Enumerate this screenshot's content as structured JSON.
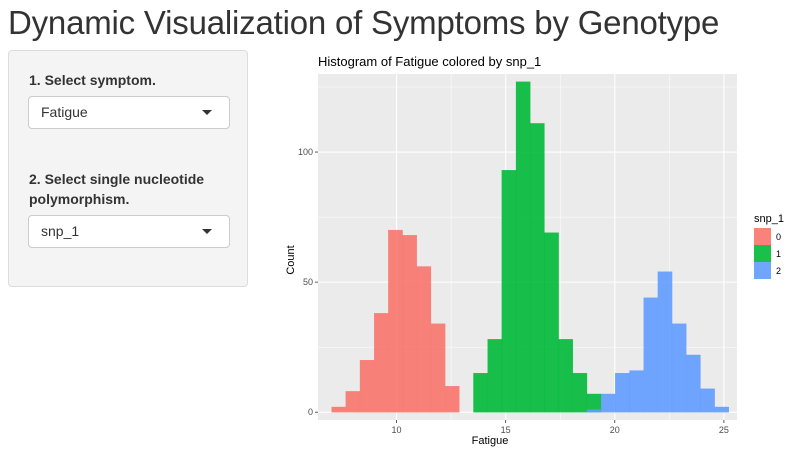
{
  "page": {
    "title": "Dynamic Visualization of Symptoms by Genotype"
  },
  "sidebar": {
    "symptom_label": "1. Select symptom.",
    "symptom_value": "Fatigue",
    "snp_label": "2. Select single nucleotide polymorphism.",
    "snp_value": "snp_1"
  },
  "colors": {
    "snp_0": "#f8766d",
    "snp_1": "#00ba38",
    "snp_2": "#619cff",
    "panel": "#ebebeb",
    "grid": "#ffffff"
  },
  "chart_data": {
    "type": "bar",
    "title": "Histogram of Fatigue colored by snp_1",
    "xlabel": "Fatigue",
    "ylabel": "Count",
    "xlim": [
      6.4,
      25.6
    ],
    "ylim": [
      -3,
      130
    ],
    "x_ticks": [
      10,
      15,
      20,
      25
    ],
    "y_ticks": [
      0,
      50,
      100
    ],
    "bin_width": 0.65,
    "legend": {
      "title": "snp_1",
      "entries": [
        "0",
        "1",
        "2"
      ],
      "position": "right"
    },
    "grid": true,
    "series": [
      {
        "name": "0",
        "bin_centers": [
          7.35,
          8.0,
          8.65,
          9.3,
          9.95,
          10.6,
          11.25,
          11.9,
          12.55
        ],
        "values": [
          2,
          8,
          20,
          38,
          70,
          68,
          56,
          34,
          10
        ]
      },
      {
        "name": "1",
        "bin_centers": [
          13.85,
          14.5,
          15.15,
          15.8,
          16.45,
          17.1,
          17.75,
          18.4,
          19.05
        ],
        "values": [
          15,
          28,
          93,
          127,
          111,
          69,
          28,
          15,
          7
        ]
      },
      {
        "name": "2",
        "bin_centers": [
          19.05,
          19.7,
          20.35,
          21.0,
          21.65,
          22.3,
          22.95,
          23.6,
          24.25,
          24.9
        ],
        "values": [
          1,
          7,
          15,
          16,
          44,
          54,
          34,
          22,
          9,
          2
        ]
      }
    ]
  }
}
